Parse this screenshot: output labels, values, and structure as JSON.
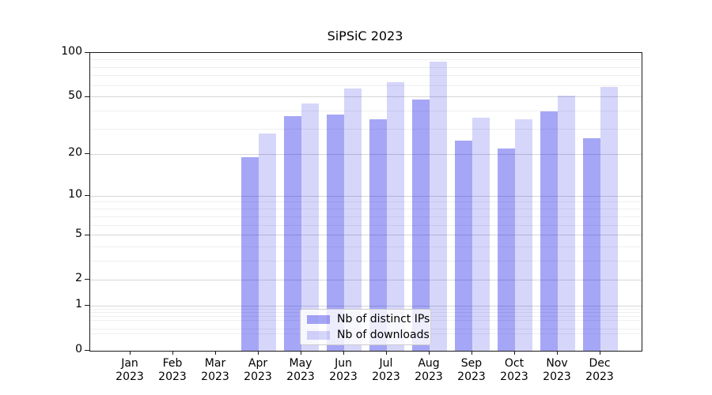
{
  "title": "SiPSiC 2023",
  "chart_data": {
    "type": "bar",
    "title": "SiPSiC 2023",
    "categories": [
      "Jan",
      "Feb",
      "Mar",
      "Apr",
      "May",
      "Jun",
      "Jul",
      "Aug",
      "Sep",
      "Oct",
      "Nov",
      "Dec"
    ],
    "category_year": "2023",
    "series": [
      {
        "name": "Nb of distinct IPs",
        "color": "rgba(0,0,230,0.35)",
        "values": [
          0,
          0,
          0,
          19,
          37,
          38,
          35,
          48,
          25,
          22,
          40,
          26
        ]
      },
      {
        "name": "Nb of downloads",
        "color": "rgba(0,0,230,0.16)",
        "values": [
          0,
          0,
          0,
          28,
          45,
          57,
          63,
          87,
          36,
          35,
          51,
          59
        ]
      }
    ],
    "y_scale": "log1p",
    "ylim": [
      0,
      100
    ],
    "y_major_ticks": [
      100,
      50,
      20,
      10,
      5,
      2,
      1,
      0
    ],
    "y_minor_gridlines": [
      90,
      80,
      70,
      60,
      40,
      30,
      9,
      8,
      7,
      6,
      4,
      3,
      0.9,
      0.8,
      0.7,
      0.6,
      0.4,
      0.3
    ],
    "grid": true,
    "legend_position": "lower center"
  },
  "colors": {
    "major_grid": "#d6d6d6",
    "minor_grid": "#efefef",
    "spine": "#1a1a1a",
    "background": "#ffffff"
  }
}
